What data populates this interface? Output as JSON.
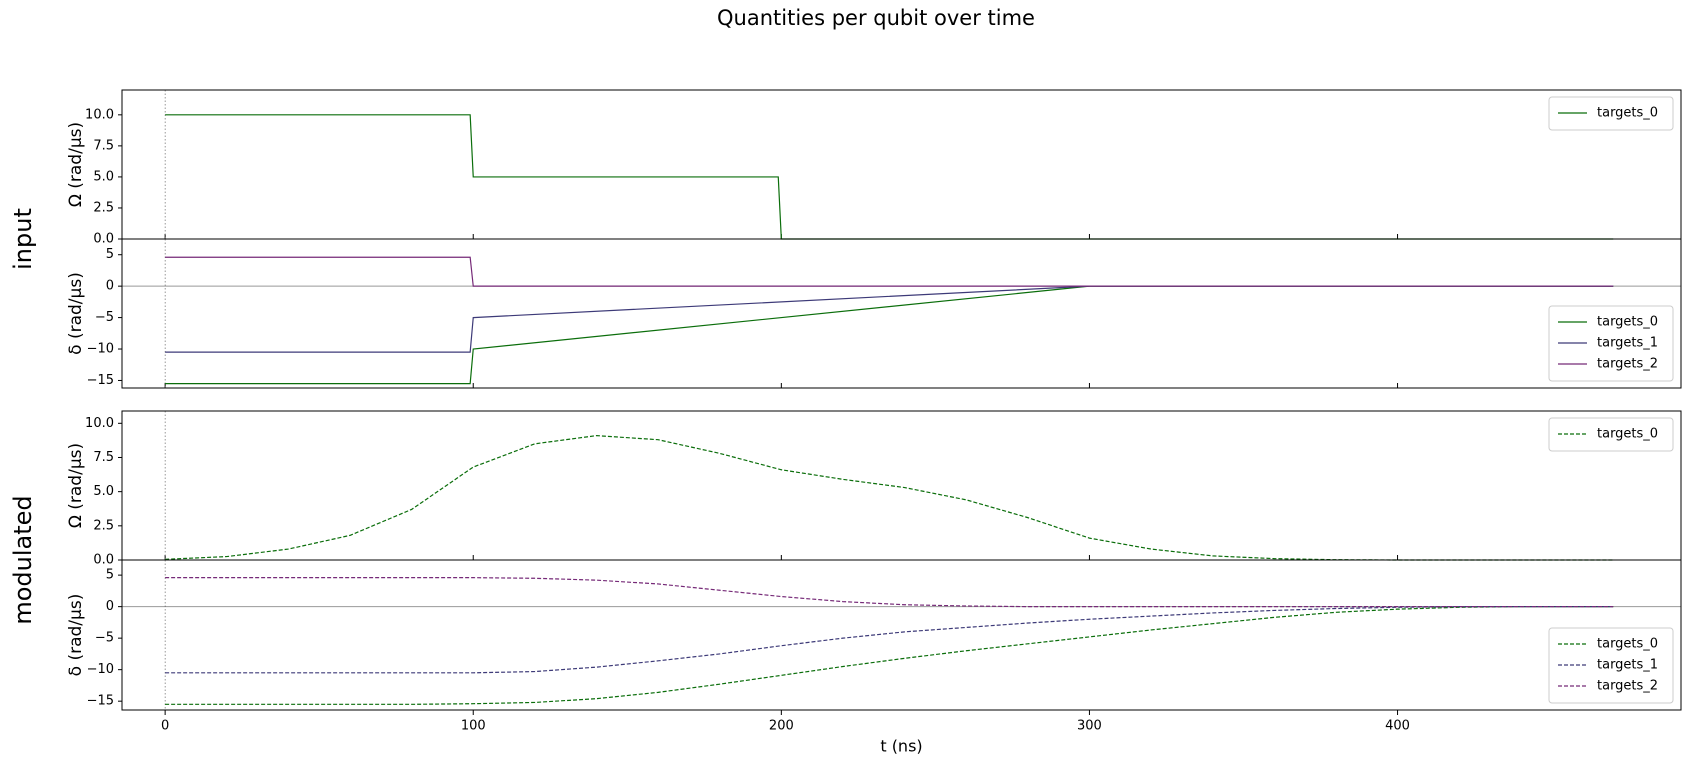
{
  "title": "Quantities per qubit over time",
  "row_labels": [
    "input",
    "modulated"
  ],
  "chart_data": [
    {
      "type": "line",
      "ylabel": "Ω (rad/µs)",
      "linestyle": "solid",
      "legend": "upper right",
      "x": [
        0,
        99,
        100,
        199,
        200,
        470
      ],
      "series": [
        {
          "name": "targets_0",
          "color": "#0b6e0b",
          "values": [
            10,
            10,
            5,
            5,
            0,
            0
          ]
        }
      ],
      "xlim": [
        -14,
        492
      ],
      "ylim": [
        0,
        12
      ],
      "xticks": [
        0,
        100,
        200,
        300,
        400
      ],
      "yticks": [
        {
          "value": 0,
          "label": "0.0"
        },
        2.5,
        {
          "value": 5,
          "label": "5.0"
        },
        7.5,
        {
          "value": 10,
          "label": "10.0"
        }
      ],
      "hline": 0,
      "vline": 0
    },
    {
      "type": "line",
      "ylabel": "δ (rad/µs)",
      "linestyle": "solid",
      "legend": "lower right",
      "x": [
        0,
        99,
        100,
        300,
        470
      ],
      "series": [
        {
          "name": "targets_0",
          "color": "#0b6e0b",
          "values": [
            -15.5,
            -15.5,
            -10,
            0,
            0
          ]
        },
        {
          "name": "targets_1",
          "color": "#3d3a78",
          "values": [
            -10.5,
            -10.5,
            -5,
            0,
            0
          ]
        },
        {
          "name": "targets_2",
          "color": "#762a78",
          "values": [
            4.6,
            4.6,
            0,
            0,
            0
          ]
        }
      ],
      "xlim": [
        -14,
        492
      ],
      "ylim": [
        -16.2,
        7.5
      ],
      "xticks": [
        0,
        100,
        200,
        300,
        400
      ],
      "yticks": [
        {
          "value": -15,
          "label": "−15"
        },
        {
          "value": -10,
          "label": "−10"
        },
        {
          "value": -5,
          "label": "−5"
        },
        0,
        5
      ],
      "hline": 0,
      "vline": 0
    },
    {
      "type": "line",
      "ylabel": "Ω (rad/µs)",
      "linestyle": "dashed",
      "legend": "upper right",
      "x": [
        0,
        20,
        40,
        60,
        80,
        100,
        120,
        140,
        160,
        180,
        200,
        220,
        240,
        260,
        280,
        300,
        320,
        340,
        360,
        380,
        400,
        420,
        440,
        460,
        470
      ],
      "series": [
        {
          "name": "targets_0",
          "color": "#0b6e0b",
          "values": [
            0.05,
            0.25,
            0.8,
            1.8,
            3.7,
            6.8,
            8.5,
            9.1,
            8.8,
            7.8,
            6.6,
            5.9,
            5.3,
            4.4,
            3.1,
            1.6,
            0.8,
            0.3,
            0.1,
            0.02,
            0,
            0,
            0,
            0,
            0
          ]
        }
      ],
      "xlim": [
        -14,
        492
      ],
      "ylim": [
        0,
        10.9
      ],
      "xticks": [
        0,
        100,
        200,
        300,
        400
      ],
      "yticks": [
        {
          "value": 0,
          "label": "0.0"
        },
        2.5,
        {
          "value": 5,
          "label": "5.0"
        },
        7.5,
        {
          "value": 10,
          "label": "10.0"
        }
      ],
      "hline": 0,
      "vline": 0
    },
    {
      "type": "line",
      "ylabel": "δ (rad/µs)",
      "xlabel": "t (ns)",
      "linestyle": "dashed",
      "legend": "lower right",
      "x": [
        0,
        20,
        40,
        60,
        80,
        100,
        120,
        140,
        160,
        180,
        200,
        220,
        240,
        260,
        280,
        300,
        320,
        340,
        360,
        380,
        400,
        420,
        440,
        460,
        470
      ],
      "series": [
        {
          "name": "targets_0",
          "color": "#0b6e0b",
          "values": [
            -15.5,
            -15.5,
            -15.5,
            -15.5,
            -15.5,
            -15.4,
            -15.2,
            -14.6,
            -13.6,
            -12.3,
            -10.9,
            -9.5,
            -8.2,
            -7.0,
            -5.9,
            -4.8,
            -3.7,
            -2.7,
            -1.7,
            -0.9,
            -0.4,
            -0.1,
            0,
            0,
            0
          ]
        },
        {
          "name": "targets_1",
          "color": "#3d3a78",
          "values": [
            -10.5,
            -10.5,
            -10.5,
            -10.5,
            -10.5,
            -10.5,
            -10.3,
            -9.6,
            -8.6,
            -7.5,
            -6.2,
            -5.0,
            -4.0,
            -3.3,
            -2.6,
            -2.0,
            -1.5,
            -1.0,
            -0.6,
            -0.3,
            -0.1,
            0,
            0,
            0,
            0
          ]
        },
        {
          "name": "targets_2",
          "color": "#762a78",
          "values": [
            4.6,
            4.6,
            4.6,
            4.6,
            4.6,
            4.6,
            4.5,
            4.2,
            3.6,
            2.6,
            1.6,
            0.8,
            0.3,
            0.1,
            0,
            0,
            0,
            0,
            0,
            0,
            0,
            0,
            0,
            0,
            0
          ]
        }
      ],
      "xlim": [
        -14,
        492
      ],
      "ylim": [
        -16.4,
        7.4
      ],
      "xticks": [
        0,
        100,
        200,
        300,
        400
      ],
      "yticks": [
        {
          "value": -15,
          "label": "−15"
        },
        {
          "value": -10,
          "label": "−10"
        },
        {
          "value": -5,
          "label": "−5"
        },
        0,
        5
      ],
      "hline": 0,
      "vline": 0
    }
  ]
}
